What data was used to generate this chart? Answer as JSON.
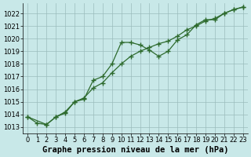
{
  "line1_x": [
    0,
    1,
    2,
    3,
    4,
    5,
    6,
    7,
    8,
    9,
    10,
    11,
    12,
    13,
    14,
    15,
    16,
    17,
    18,
    19,
    20,
    21,
    22,
    23
  ],
  "line1_y": [
    1013.8,
    1013.3,
    1013.2,
    1013.8,
    1014.1,
    1015.0,
    1015.2,
    1016.7,
    1017.0,
    1018.0,
    1019.7,
    1019.7,
    1019.5,
    1019.1,
    1018.6,
    1019.0,
    1019.9,
    1020.3,
    1021.1,
    1021.5,
    1021.5,
    1022.0,
    1022.3,
    1022.5
  ],
  "line2_x": [
    0,
    2,
    3,
    4,
    5,
    6,
    7,
    8,
    9,
    10,
    11,
    12,
    13,
    14,
    15,
    16,
    17,
    18,
    19,
    20,
    21,
    22,
    23
  ],
  "line2_y": [
    1013.8,
    1013.2,
    1013.8,
    1014.2,
    1015.0,
    1015.3,
    1016.1,
    1016.5,
    1017.3,
    1018.0,
    1018.6,
    1019.0,
    1019.3,
    1019.6,
    1019.8,
    1020.2,
    1020.7,
    1021.0,
    1021.4,
    1021.6,
    1022.0,
    1022.3,
    1022.5
  ],
  "line_color": "#2d6a2d",
  "bg_color": "#c8e8e8",
  "grid_color": "#9bbcbc",
  "ylim": [
    1012.5,
    1022.8
  ],
  "yticks": [
    1013,
    1014,
    1015,
    1016,
    1017,
    1018,
    1019,
    1020,
    1021,
    1022
  ],
  "xticks": [
    0,
    1,
    2,
    3,
    4,
    5,
    6,
    7,
    8,
    9,
    10,
    11,
    12,
    13,
    14,
    15,
    16,
    17,
    18,
    19,
    20,
    21,
    22,
    23
  ],
  "xlabel": "Graphe pression niveau de la mer (hPa)",
  "xlabel_fontsize": 7.5,
  "tick_fontsize": 6
}
